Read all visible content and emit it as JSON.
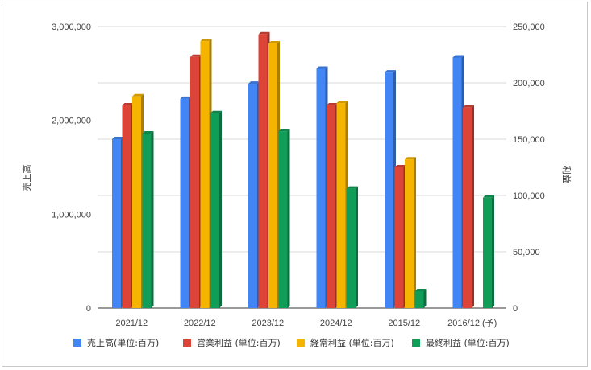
{
  "chart_data": {
    "type": "bar",
    "categories": [
      "2021/12",
      "2022/12",
      "2023/12",
      "2024/12",
      "2015/12",
      "2016/12 (予)"
    ],
    "series": [
      {
        "name": "売上高(単位:百万)",
        "axis": "left",
        "color": "#4285f4",
        "values": [
          1800000,
          2230000,
          2390000,
          2550000,
          2510000,
          2670000
        ]
      },
      {
        "name": "営業利益 (単位:百万)",
        "axis": "right",
        "color": "#db4437",
        "values": [
          180000,
          223000,
          243000,
          180000,
          125000,
          178000
        ]
      },
      {
        "name": "経常利益 (単位:百万)",
        "axis": "right",
        "color": "#f4b400",
        "values": [
          188000,
          237000,
          235000,
          182000,
          132000,
          null
        ]
      },
      {
        "name": "最終利益 (単位:百万)",
        "axis": "right",
        "color": "#0f9d58",
        "values": [
          155000,
          173000,
          157000,
          106000,
          15000,
          98000
        ]
      }
    ],
    "ylabel_left": "売上高",
    "ylabel_right": "利益",
    "ylim_left": [
      0,
      3000000
    ],
    "ylim_right": [
      0,
      250000
    ],
    "yticks_left": [
      "0",
      "1,000,000",
      "2,000,000",
      "3,000,000"
    ],
    "yticks_right": [
      "0",
      "50,000",
      "100,000",
      "150,000",
      "200,000",
      "250,000"
    ],
    "grid": true,
    "legend_position": "bottom"
  }
}
